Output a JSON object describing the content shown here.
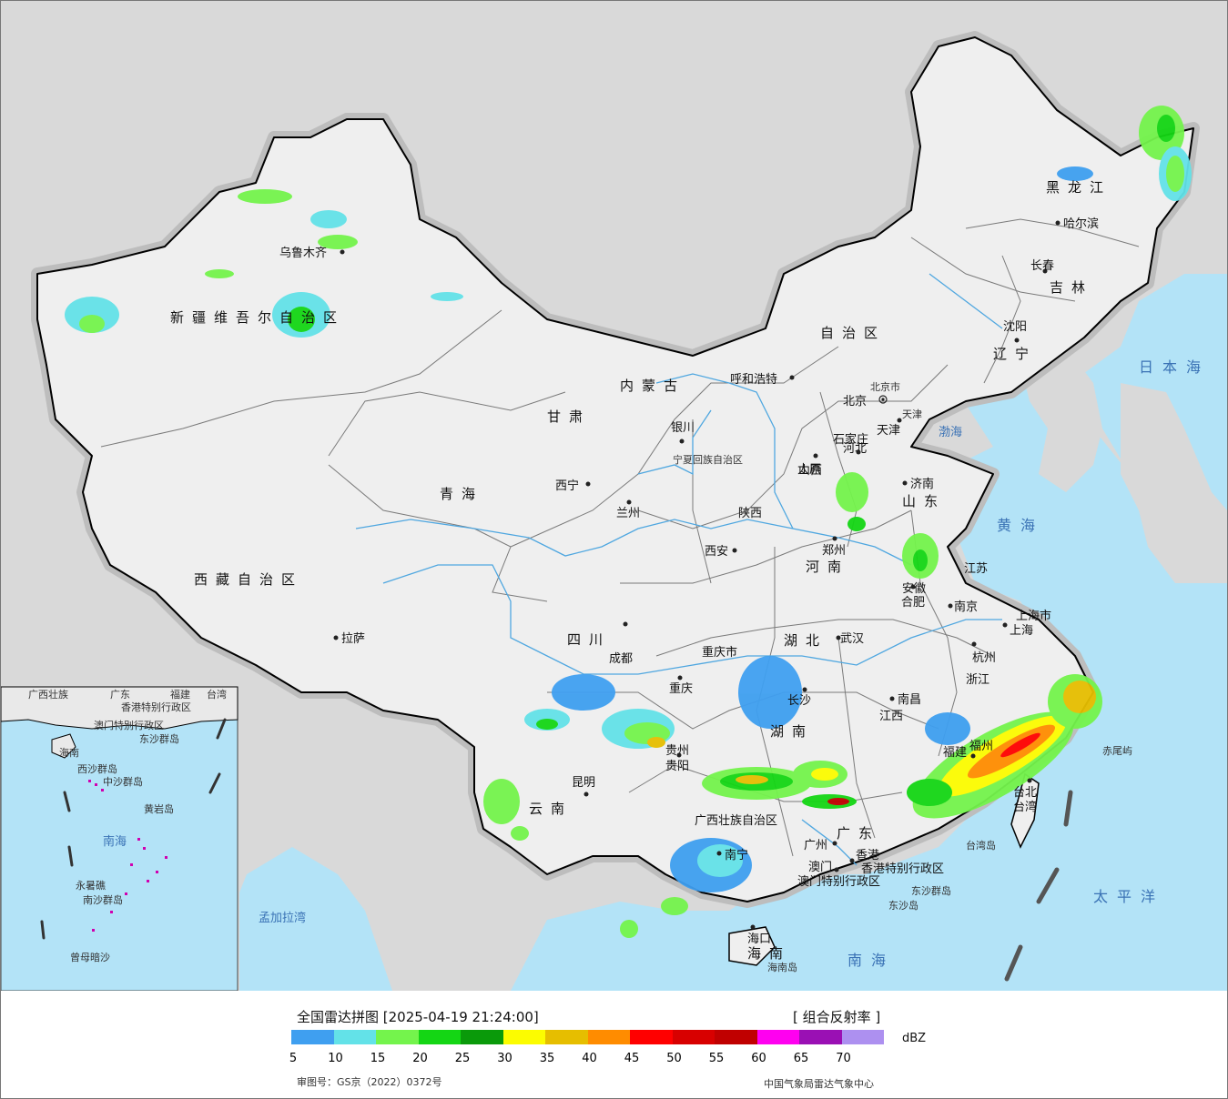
{
  "map": {
    "provinces": [
      "新疆维吾尔自治区",
      "西藏自治区",
      "青海",
      "甘肃",
      "内蒙古",
      "自治区",
      "黑龙江",
      "吉林",
      "辽宁",
      "河北",
      "山西",
      "山东",
      "河南",
      "陕西",
      "四川",
      "重庆市",
      "湖北",
      "湖南",
      "江西",
      "安徽",
      "江苏",
      "浙江",
      "福建",
      "贵州",
      "云南",
      "广西壮族自治区",
      "广东",
      "海南",
      "台湾",
      "上海市",
      "北京市",
      "天津",
      "宁夏回族自治区",
      "香港特别行政区",
      "澳门特别行政区"
    ],
    "cities": [
      "乌鲁木齐",
      "拉萨",
      "西宁",
      "兰州",
      "银川",
      "呼和浩特",
      "北京",
      "天津",
      "石家庄",
      "太原",
      "济南",
      "郑州",
      "西安",
      "成都",
      "重庆",
      "贵阳",
      "昆明",
      "南宁",
      "广州",
      "香港",
      "澳门",
      "长沙",
      "武汉",
      "南昌",
      "合肥",
      "南京",
      "上海",
      "杭州",
      "福州",
      "台北",
      "沈阳",
      "长春",
      "哈尔滨",
      "海口"
    ],
    "seas": [
      "日本海",
      "渤海",
      "黄海",
      "太平洋",
      "南海",
      "孟加拉湾"
    ],
    "islands": [
      "东沙群岛",
      "台湾岛",
      "赤尾屿",
      "海南岛",
      "东沙岛"
    ],
    "inset_labels": [
      "广西壮族",
      "广东",
      "福建",
      "台湾",
      "香港特别行政区",
      "澳门特别行政区",
      "东沙群岛",
      "海南",
      "西沙群岛",
      "中沙群岛",
      "黄岩岛",
      "南海",
      "永暑礁",
      "南沙群岛",
      "曾母暗沙"
    ]
  },
  "colors": {
    "ocean": "#b3e3f7",
    "land_china": "#ececec",
    "land_other": "#d8d8d8",
    "border": "#000000",
    "river": "#4fa7e0",
    "sea_label": "#3a72b5"
  },
  "legend": {
    "title": "全国雷达拼图 [2025-04-19 21:24:00]",
    "product": "[ 组合反射率 ]",
    "unit": "dBZ",
    "scale_colors": [
      "#3f9ff0",
      "#63e2e8",
      "#74f44c",
      "#14d614",
      "#0a9a0a",
      "#fcfc00",
      "#e6be00",
      "#ff8c00",
      "#ff0000",
      "#d80000",
      "#c00000",
      "#ff00f0",
      "#9a10b4",
      "#ad90f0"
    ],
    "scale_ticks": [
      "5",
      "10",
      "15",
      "20",
      "25",
      "30",
      "35",
      "40",
      "45",
      "50",
      "55",
      "60",
      "65",
      "70"
    ],
    "review_number": "审图号：GS京（2022）0372号",
    "source": "中国气象局雷达气象中心"
  }
}
